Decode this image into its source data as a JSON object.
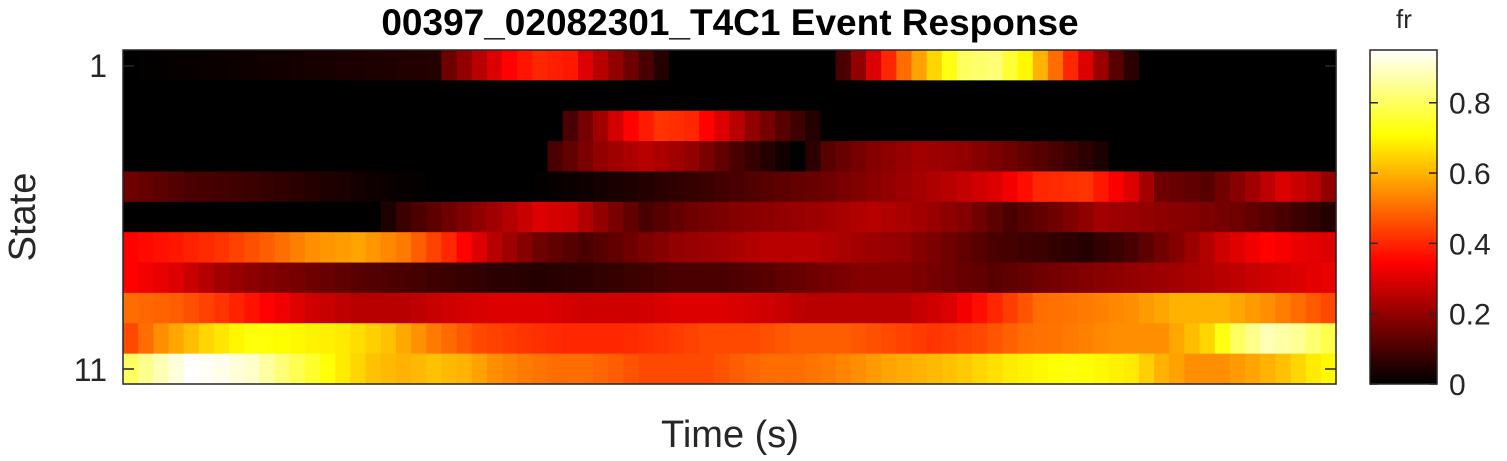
{
  "chart_data": {
    "type": "heatmap",
    "title": "00397_02082301_T4C1 Event Response",
    "xlabel": "Time (s)",
    "ylabel": "State",
    "y_tick_labels": [
      "1",
      "11"
    ],
    "x_tick_labels": [],
    "colormap": "hot",
    "colorbar": {
      "title": "fr",
      "ticks": [
        "0",
        "0.2",
        "0.4",
        "0.6",
        "0.8"
      ],
      "tick_values": [
        0,
        0.2,
        0.4,
        0.6,
        0.8
      ],
      "range": [
        0,
        0.95
      ]
    },
    "n_columns": 80,
    "states": [
      1,
      2,
      3,
      4,
      5,
      6,
      7,
      8,
      9,
      10,
      11
    ],
    "rows": [
      [
        [
          0,
          0,
          0.0
        ],
        [
          20,
          0,
          0.05
        ],
        [
          21,
          0,
          0.15
        ],
        [
          23,
          0,
          0.25
        ],
        [
          25,
          0,
          0.35
        ],
        [
          27,
          0,
          0.4
        ],
        [
          29,
          0,
          0.38
        ],
        [
          30,
          0,
          0.3
        ],
        [
          32,
          0,
          0.2
        ],
        [
          34,
          0,
          0.1
        ],
        [
          36,
          0,
          0.0
        ],
        [
          46,
          0,
          0.0
        ],
        [
          47,
          0,
          0.1
        ],
        [
          49,
          0,
          0.3
        ],
        [
          51,
          0,
          0.5
        ],
        [
          53,
          0,
          0.65
        ],
        [
          55,
          0,
          0.8
        ],
        [
          57,
          0,
          0.82
        ],
        [
          59,
          0,
          0.7
        ],
        [
          61,
          0,
          0.5
        ],
        [
          63,
          0,
          0.3
        ],
        [
          65,
          0,
          0.12
        ],
        [
          67,
          0,
          0.0
        ],
        [
          79,
          0,
          0.0
        ]
      ],
      [
        [
          0,
          0,
          0.0
        ],
        [
          79,
          0,
          0.0
        ]
      ],
      [
        [
          0,
          0,
          0.0
        ],
        [
          28,
          0,
          0.0
        ],
        [
          29,
          0,
          0.1
        ],
        [
          31,
          0,
          0.22
        ],
        [
          33,
          0,
          0.35
        ],
        [
          35,
          0,
          0.42
        ],
        [
          37,
          0,
          0.4
        ],
        [
          39,
          0,
          0.3
        ],
        [
          41,
          0,
          0.2
        ],
        [
          43,
          0,
          0.12
        ],
        [
          45,
          0,
          0.05
        ],
        [
          46,
          0,
          0.0
        ],
        [
          79,
          0,
          0.0
        ]
      ],
      [
        [
          0,
          0,
          0.0
        ],
        [
          27,
          0,
          0.0
        ],
        [
          28,
          0,
          0.1
        ],
        [
          31,
          0,
          0.2
        ],
        [
          34,
          0,
          0.25
        ],
        [
          37,
          0,
          0.2
        ],
        [
          40,
          0,
          0.1
        ],
        [
          42,
          0,
          0.05
        ],
        [
          44,
          0,
          0.0
        ],
        [
          46,
          0,
          0.12
        ],
        [
          49,
          0,
          0.18
        ],
        [
          52,
          0,
          0.22
        ],
        [
          55,
          0,
          0.2
        ],
        [
          58,
          0,
          0.15
        ],
        [
          61,
          0,
          0.1
        ],
        [
          64,
          0,
          0.04
        ],
        [
          65,
          0,
          0.0
        ],
        [
          79,
          0,
          0.0
        ]
      ],
      [
        [
          0,
          0,
          0.15
        ],
        [
          4,
          0,
          0.1
        ],
        [
          8,
          0,
          0.08
        ],
        [
          12,
          0,
          0.05
        ],
        [
          16,
          0,
          0.02
        ],
        [
          20,
          0,
          0.0
        ],
        [
          26,
          0,
          0.0
        ],
        [
          30,
          0,
          0.02
        ],
        [
          34,
          0,
          0.05
        ],
        [
          38,
          0,
          0.08
        ],
        [
          42,
          0,
          0.12
        ],
        [
          46,
          0,
          0.15
        ],
        [
          50,
          0,
          0.2
        ],
        [
          54,
          0,
          0.25
        ],
        [
          57,
          0,
          0.3
        ],
        [
          60,
          0,
          0.4
        ],
        [
          63,
          0,
          0.42
        ],
        [
          66,
          0,
          0.3
        ],
        [
          68,
          0,
          0.15
        ],
        [
          71,
          0,
          0.12
        ],
        [
          74,
          0,
          0.22
        ],
        [
          76,
          0,
          0.3
        ],
        [
          78,
          0,
          0.25
        ],
        [
          79,
          0,
          0.2
        ]
      ],
      [
        [
          0,
          0,
          0.0
        ],
        [
          16,
          0,
          0.0
        ],
        [
          18,
          0,
          0.08
        ],
        [
          21,
          0,
          0.15
        ],
        [
          24,
          0,
          0.22
        ],
        [
          27,
          0,
          0.3
        ],
        [
          29,
          0,
          0.28
        ],
        [
          31,
          0,
          0.2
        ],
        [
          34,
          0,
          0.1
        ],
        [
          37,
          0,
          0.15
        ],
        [
          40,
          0,
          0.18
        ],
        [
          43,
          0,
          0.2
        ],
        [
          46,
          0,
          0.22
        ],
        [
          49,
          0,
          0.25
        ],
        [
          52,
          0,
          0.22
        ],
        [
          55,
          0,
          0.18
        ],
        [
          58,
          0,
          0.1
        ],
        [
          61,
          0,
          0.15
        ],
        [
          64,
          0,
          0.22
        ],
        [
          67,
          0,
          0.2
        ],
        [
          70,
          0,
          0.18
        ],
        [
          73,
          0,
          0.15
        ],
        [
          76,
          0,
          0.1
        ],
        [
          79,
          0,
          0.05
        ]
      ],
      [
        [
          0,
          0,
          0.35
        ],
        [
          3,
          0,
          0.38
        ],
        [
          6,
          0,
          0.42
        ],
        [
          9,
          0,
          0.48
        ],
        [
          12,
          0,
          0.55
        ],
        [
          15,
          0,
          0.58
        ],
        [
          18,
          0,
          0.52
        ],
        [
          21,
          0,
          0.4
        ],
        [
          24,
          0,
          0.25
        ],
        [
          27,
          0,
          0.15
        ],
        [
          30,
          0,
          0.1
        ],
        [
          33,
          0,
          0.15
        ],
        [
          36,
          0,
          0.2
        ],
        [
          39,
          0,
          0.22
        ],
        [
          42,
          0,
          0.25
        ],
        [
          45,
          0,
          0.25
        ],
        [
          48,
          0,
          0.22
        ],
        [
          51,
          0,
          0.2
        ],
        [
          54,
          0,
          0.15
        ],
        [
          57,
          0,
          0.1
        ],
        [
          60,
          0,
          0.08
        ],
        [
          63,
          0,
          0.05
        ],
        [
          66,
          0,
          0.1
        ],
        [
          69,
          0,
          0.18
        ],
        [
          72,
          0,
          0.28
        ],
        [
          75,
          0,
          0.35
        ],
        [
          77,
          0,
          0.32
        ],
        [
          79,
          0,
          0.3
        ]
      ],
      [
        [
          0,
          0,
          0.35
        ],
        [
          3,
          0,
          0.3
        ],
        [
          6,
          0,
          0.22
        ],
        [
          9,
          0,
          0.18
        ],
        [
          12,
          0,
          0.15
        ],
        [
          15,
          0,
          0.12
        ],
        [
          18,
          0,
          0.1
        ],
        [
          21,
          0,
          0.08
        ],
        [
          24,
          0,
          0.06
        ],
        [
          27,
          0,
          0.05
        ],
        [
          30,
          0,
          0.06
        ],
        [
          33,
          0,
          0.08
        ],
        [
          36,
          0,
          0.1
        ],
        [
          39,
          0,
          0.1
        ],
        [
          42,
          0,
          0.12
        ],
        [
          45,
          0,
          0.15
        ],
        [
          48,
          0,
          0.18
        ],
        [
          51,
          0,
          0.18
        ],
        [
          54,
          0,
          0.15
        ],
        [
          57,
          0,
          0.12
        ],
        [
          60,
          0,
          0.15
        ],
        [
          63,
          0,
          0.18
        ],
        [
          66,
          0,
          0.2
        ],
        [
          69,
          0,
          0.22
        ],
        [
          72,
          0,
          0.25
        ],
        [
          75,
          0,
          0.28
        ],
        [
          77,
          0,
          0.3
        ],
        [
          79,
          0,
          0.32
        ]
      ],
      [
        [
          0,
          0,
          0.5
        ],
        [
          3,
          0,
          0.48
        ],
        [
          6,
          0,
          0.42
        ],
        [
          9,
          0,
          0.35
        ],
        [
          12,
          0,
          0.28
        ],
        [
          15,
          0,
          0.25
        ],
        [
          18,
          0,
          0.25
        ],
        [
          21,
          0,
          0.28
        ],
        [
          24,
          0,
          0.3
        ],
        [
          27,
          0,
          0.3
        ],
        [
          30,
          0,
          0.28
        ],
        [
          33,
          0,
          0.28
        ],
        [
          36,
          0,
          0.3
        ],
        [
          39,
          0,
          0.3
        ],
        [
          42,
          0,
          0.28
        ],
        [
          45,
          0,
          0.25
        ],
        [
          48,
          0,
          0.25
        ],
        [
          51,
          0,
          0.25
        ],
        [
          54,
          0,
          0.3
        ],
        [
          57,
          0,
          0.4
        ],
        [
          60,
          0,
          0.5
        ],
        [
          63,
          0,
          0.52
        ],
        [
          66,
          0,
          0.55
        ],
        [
          69,
          0,
          0.6
        ],
        [
          72,
          0,
          0.6
        ],
        [
          75,
          0,
          0.55
        ],
        [
          77,
          0,
          0.5
        ],
        [
          79,
          0,
          0.45
        ]
      ],
      [
        [
          0,
          0,
          0.45
        ],
        [
          2,
          0,
          0.55
        ],
        [
          5,
          0,
          0.65
        ],
        [
          8,
          0,
          0.72
        ],
        [
          11,
          0,
          0.7
        ],
        [
          14,
          0,
          0.68
        ],
        [
          17,
          0,
          0.62
        ],
        [
          20,
          0,
          0.52
        ],
        [
          23,
          0,
          0.45
        ],
        [
          26,
          0,
          0.42
        ],
        [
          29,
          0,
          0.4
        ],
        [
          32,
          0,
          0.4
        ],
        [
          35,
          0,
          0.42
        ],
        [
          38,
          0,
          0.45
        ],
        [
          41,
          0,
          0.45
        ],
        [
          44,
          0,
          0.48
        ],
        [
          47,
          0,
          0.48
        ],
        [
          50,
          0,
          0.45
        ],
        [
          53,
          0,
          0.42
        ],
        [
          56,
          0,
          0.45
        ],
        [
          59,
          0,
          0.5
        ],
        [
          62,
          0,
          0.52
        ],
        [
          65,
          0,
          0.55
        ],
        [
          68,
          0,
          0.55
        ],
        [
          71,
          0,
          0.65
        ],
        [
          73,
          0,
          0.8
        ],
        [
          75,
          0,
          0.88
        ],
        [
          77,
          0,
          0.85
        ],
        [
          79,
          0,
          0.78
        ]
      ],
      [
        [
          0,
          0,
          0.8
        ],
        [
          2,
          0,
          0.88
        ],
        [
          4,
          0,
          0.95
        ],
        [
          6,
          0,
          0.93
        ],
        [
          8,
          0,
          0.9
        ],
        [
          10,
          0,
          0.82
        ],
        [
          12,
          0,
          0.75
        ],
        [
          14,
          0,
          0.68
        ],
        [
          16,
          0,
          0.62
        ],
        [
          18,
          0,
          0.6
        ],
        [
          20,
          0,
          0.62
        ],
        [
          22,
          0,
          0.6
        ],
        [
          24,
          0,
          0.55
        ],
        [
          26,
          0,
          0.52
        ],
        [
          28,
          0,
          0.5
        ],
        [
          30,
          0,
          0.5
        ],
        [
          32,
          0,
          0.48
        ],
        [
          34,
          0,
          0.45
        ],
        [
          36,
          0,
          0.45
        ],
        [
          38,
          0,
          0.45
        ],
        [
          40,
          0,
          0.48
        ],
        [
          42,
          0,
          0.5
        ],
        [
          44,
          0,
          0.5
        ],
        [
          46,
          0,
          0.52
        ],
        [
          48,
          0,
          0.55
        ],
        [
          50,
          0,
          0.58
        ],
        [
          52,
          0,
          0.6
        ],
        [
          54,
          0,
          0.62
        ],
        [
          56,
          0,
          0.65
        ],
        [
          58,
          0,
          0.68
        ],
        [
          60,
          0,
          0.7
        ],
        [
          62,
          0,
          0.72
        ],
        [
          64,
          0,
          0.7
        ],
        [
          66,
          0,
          0.68
        ],
        [
          68,
          0,
          0.6
        ],
        [
          70,
          0,
          0.55
        ],
        [
          72,
          0,
          0.55
        ],
        [
          74,
          0,
          0.58
        ],
        [
          76,
          0,
          0.62
        ],
        [
          78,
          0,
          0.68
        ],
        [
          79,
          0,
          0.7
        ]
      ]
    ]
  }
}
